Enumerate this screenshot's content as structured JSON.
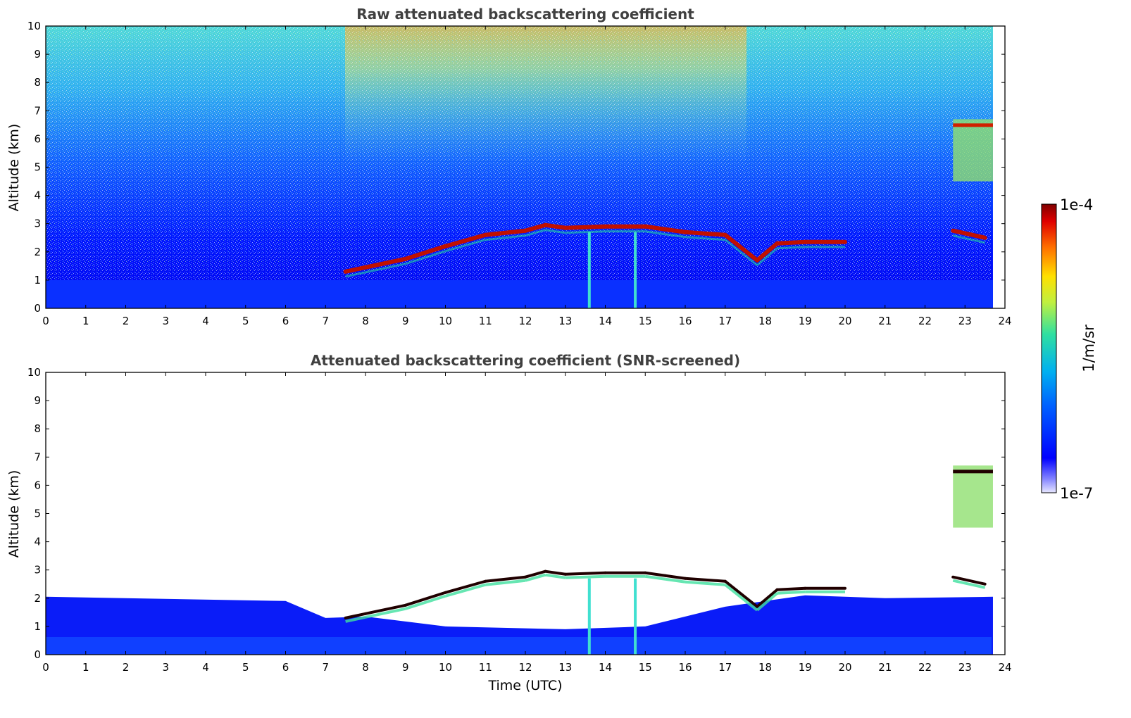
{
  "colors": {
    "jet": [
      "#f0f0ff",
      "#0000ff",
      "#00a0ff",
      "#20e0c0",
      "#a0ff60",
      "#ffe000",
      "#ff8000",
      "#e00000",
      "#800000"
    ],
    "text": "#000000",
    "title_text": "#404040",
    "frame": "#000000",
    "background": "#ffffff"
  },
  "chart_data": [
    {
      "type": "heatmap",
      "title": "Raw attenuated backscattering coefficient",
      "xlabel": "",
      "ylabel": "Altitude (km)",
      "xlim": [
        0,
        24
      ],
      "ylim": [
        0,
        10
      ],
      "xticks": [
        "0",
        "1",
        "2",
        "3",
        "4",
        "5",
        "6",
        "7",
        "8",
        "9",
        "10",
        "11",
        "12",
        "13",
        "14",
        "15",
        "16",
        "17",
        "18",
        "19",
        "20",
        "21",
        "22",
        "23",
        "24"
      ],
      "yticks": [
        "0",
        "1",
        "2",
        "3",
        "4",
        "5",
        "6",
        "7",
        "8",
        "9",
        "10"
      ],
      "data_end_time": 23.7,
      "cloud_layer_top_km": [
        {
          "t": 7.5,
          "z": 1.3
        },
        {
          "t": 8.0,
          "z": 1.45
        },
        {
          "t": 9.0,
          "z": 1.75
        },
        {
          "t": 10.0,
          "z": 2.2
        },
        {
          "t": 11.0,
          "z": 2.6
        },
        {
          "t": 12.0,
          "z": 2.75
        },
        {
          "t": 12.5,
          "z": 2.95
        },
        {
          "t": 13.0,
          "z": 2.85
        },
        {
          "t": 14.0,
          "z": 2.9
        },
        {
          "t": 15.0,
          "z": 2.9
        },
        {
          "t": 15.5,
          "z": 2.8
        },
        {
          "t": 16.0,
          "z": 2.7
        },
        {
          "t": 17.0,
          "z": 2.6
        },
        {
          "t": 17.8,
          "z": 1.7
        },
        {
          "t": 18.3,
          "z": 2.3
        },
        {
          "t": 19.0,
          "z": 2.35
        },
        {
          "t": 20.0,
          "z": 2.35
        },
        {
          "t": 22.7,
          "z": 2.75
        },
        {
          "t": 23.5,
          "z": 2.5
        }
      ],
      "cirrus_km": {
        "t_start": 22.7,
        "t_end": 23.7,
        "z_bottom": 4.5,
        "z_top": 6.7
      }
    },
    {
      "type": "heatmap",
      "title": "Attenuated backscattering coefficient (SNR-screened)",
      "xlabel": "Time (UTC)",
      "ylabel": "Altitude (km)",
      "xlim": [
        0,
        24
      ],
      "ylim": [
        0,
        10
      ],
      "xticks": [
        "0",
        "1",
        "2",
        "3",
        "4",
        "5",
        "6",
        "7",
        "8",
        "9",
        "10",
        "11",
        "12",
        "13",
        "14",
        "15",
        "16",
        "17",
        "18",
        "19",
        "20",
        "21",
        "22",
        "23",
        "24"
      ],
      "yticks": [
        "0",
        "1",
        "2",
        "3",
        "4",
        "5",
        "6",
        "7",
        "8",
        "9",
        "10"
      ],
      "data_end_time": 23.7,
      "boundary_layer_top_km": [
        {
          "t": 0,
          "z": 2.05
        },
        {
          "t": 6.0,
          "z": 1.9
        },
        {
          "t": 7.0,
          "z": 1.3
        },
        {
          "t": 8.0,
          "z": 1.35
        },
        {
          "t": 10.0,
          "z": 1.0
        },
        {
          "t": 13.0,
          "z": 0.9
        },
        {
          "t": 15.0,
          "z": 1.0
        },
        {
          "t": 17.0,
          "z": 1.7
        },
        {
          "t": 19.0,
          "z": 2.1
        },
        {
          "t": 21.0,
          "z": 2.0
        },
        {
          "t": 23.7,
          "z": 2.05
        }
      ]
    }
  ],
  "colorbar": {
    "max_label": "1e-4",
    "min_label": "1e-7",
    "unit_label": "1/m/sr"
  }
}
